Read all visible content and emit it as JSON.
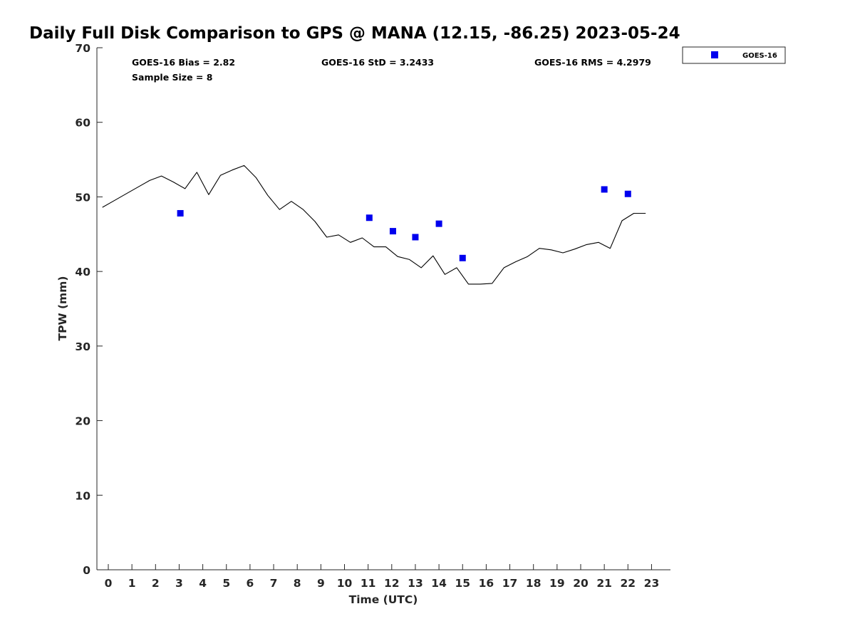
{
  "chart_data": {
    "type": "scatter",
    "title": "Daily Full Disk Comparison to GPS @ MANA (12.15, -86.25) 2023-05-24",
    "xlabel": "Time (UTC)",
    "ylabel": "TPW (mm)",
    "xlim": [
      -0.5,
      23.75
    ],
    "ylim": [
      0,
      70
    ],
    "x_ticks": [
      "0",
      "1",
      "2",
      "3",
      "4",
      "5",
      "6",
      "7",
      "8",
      "9",
      "10",
      "11",
      "12",
      "13",
      "14",
      "15",
      "16",
      "17",
      "18",
      "19",
      "20",
      "21",
      "22",
      "23"
    ],
    "y_ticks": [
      "0",
      "10",
      "20",
      "30",
      "40",
      "50",
      "60",
      "70"
    ],
    "grid": false,
    "legend_position": "top-right (outside plot)",
    "stats": {
      "bias": "GOES-16 Bias = 2.82",
      "std": "GOES-16 StD = 3.2433",
      "rms": "GOES-16 RMS = 4.2979",
      "sample": "Sample Size = 8"
    },
    "series": [
      {
        "name": "GOES-16",
        "kind": "scatter",
        "marker": "square",
        "color": "#0000ee",
        "x": [
          3.05,
          11.05,
          12.05,
          13.0,
          14.0,
          15.0,
          21.0,
          22.0
        ],
        "y": [
          47.8,
          47.2,
          45.4,
          44.6,
          46.4,
          41.8,
          51.0,
          50.4
        ]
      },
      {
        "kind": "line",
        "color": "#000000",
        "x": [
          -0.25,
          0.25,
          0.75,
          1.25,
          1.75,
          2.25,
          2.75,
          3.25,
          3.75,
          4.25,
          4.75,
          5.25,
          5.75,
          6.25,
          6.75,
          7.25,
          7.75,
          8.25,
          8.75,
          9.25,
          9.75,
          10.25,
          10.75,
          11.25,
          11.75,
          12.25,
          12.75,
          13.25,
          13.75,
          14.25,
          14.75,
          15.25,
          15.75,
          16.25,
          16.75,
          17.25,
          17.75,
          18.25,
          18.75,
          19.25,
          19.75,
          20.25,
          20.75,
          21.25,
          21.75,
          22.25,
          22.75
        ],
        "y": [
          48.6,
          49.5,
          50.4,
          51.3,
          52.2,
          52.8,
          52.0,
          51.1,
          53.3,
          50.3,
          52.9,
          53.6,
          54.2,
          52.6,
          50.2,
          48.3,
          49.4,
          48.3,
          46.7,
          44.6,
          44.9,
          43.9,
          44.5,
          43.3,
          43.3,
          42.0,
          41.6,
          40.5,
          42.1,
          39.6,
          40.5,
          38.3,
          38.3,
          38.4,
          40.5,
          41.3,
          42.0,
          43.1,
          42.9,
          42.5,
          43.0,
          43.6,
          43.9,
          43.1,
          46.8,
          47.8,
          47.8
        ]
      }
    ]
  }
}
